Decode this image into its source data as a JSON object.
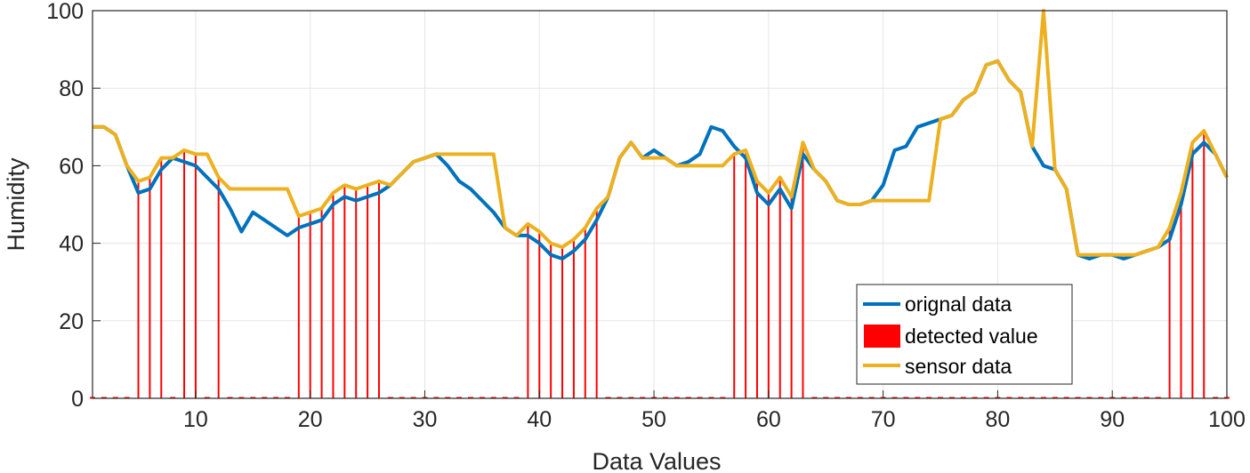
{
  "chart_data": {
    "type": "line",
    "title": "",
    "xlabel": "Data Values",
    "ylabel": "Humidity",
    "xlim": [
      1,
      100
    ],
    "ylim": [
      0,
      100
    ],
    "grid": true,
    "legend_position": "bottom-right",
    "x_ticks": [
      10,
      20,
      30,
      40,
      50,
      60,
      70,
      80,
      90,
      100
    ],
    "y_ticks": [
      0,
      20,
      40,
      60,
      80,
      100
    ],
    "colors": {
      "original": "#0072BD",
      "detected": "#FF0000",
      "sensor": "#EDB120",
      "grid": "#E5E5E5",
      "axis": "#262626"
    },
    "legend": [
      "orignal data",
      "detected value",
      "sensor data"
    ],
    "x": [
      1,
      2,
      3,
      4,
      5,
      6,
      7,
      8,
      9,
      10,
      11,
      12,
      13,
      14,
      15,
      16,
      17,
      18,
      19,
      20,
      21,
      22,
      23,
      24,
      25,
      26,
      27,
      28,
      29,
      30,
      31,
      32,
      33,
      34,
      35,
      36,
      37,
      38,
      39,
      40,
      41,
      42,
      43,
      44,
      45,
      46,
      47,
      48,
      49,
      50,
      51,
      52,
      53,
      54,
      55,
      56,
      57,
      58,
      59,
      60,
      61,
      62,
      63,
      64,
      65,
      66,
      67,
      68,
      69,
      70,
      71,
      72,
      73,
      74,
      75,
      76,
      77,
      78,
      79,
      80,
      81,
      82,
      83,
      84,
      85,
      86,
      87,
      88,
      89,
      90,
      91,
      92,
      93,
      94,
      95,
      96,
      97,
      98,
      99,
      100
    ],
    "series": [
      {
        "name": "orignal data",
        "values": [
          70,
          70,
          68,
          60,
          53,
          54,
          59,
          62,
          61,
          60,
          57,
          54,
          49,
          43,
          48,
          46,
          44,
          42,
          44,
          45,
          46,
          50,
          52,
          51,
          52,
          53,
          55,
          58,
          61,
          62,
          63,
          60,
          56,
          54,
          51,
          48,
          44,
          42,
          42,
          40,
          37,
          36,
          38,
          41,
          46,
          52,
          62,
          66,
          62,
          64,
          62,
          60,
          61,
          63,
          70,
          69,
          65,
          62,
          53,
          50,
          54,
          49,
          63,
          59,
          56,
          51,
          50,
          50,
          51,
          55,
          64,
          65,
          70,
          71,
          72,
          73,
          77,
          79,
          86,
          87,
          82,
          79,
          65,
          60,
          59,
          54,
          37,
          36,
          37,
          37,
          36,
          37,
          38,
          39,
          41,
          50,
          63,
          66,
          63,
          57
        ]
      },
      {
        "name": "sensor data",
        "values": [
          70,
          70,
          68,
          60,
          56,
          57,
          62,
          62,
          64,
          63,
          63,
          57,
          54,
          54,
          54,
          54,
          54,
          54,
          47,
          48,
          49,
          53,
          55,
          54,
          55,
          56,
          55,
          58,
          61,
          62,
          63,
          63,
          63,
          63,
          63,
          63,
          44,
          42,
          45,
          43,
          40,
          39,
          41,
          44,
          49,
          52,
          62,
          66,
          62,
          62,
          62,
          60,
          60,
          60,
          60,
          60,
          63,
          64,
          56,
          53,
          57,
          52,
          66,
          59,
          56,
          51,
          50,
          50,
          51,
          51,
          51,
          51,
          51,
          51,
          72,
          73,
          77,
          79,
          86,
          87,
          82,
          79,
          65,
          100,
          59,
          54,
          37,
          37,
          37,
          37,
          37,
          37,
          38,
          39,
          44,
          53,
          66,
          69,
          63,
          57
        ]
      }
    ],
    "detected_value": [
      0,
      0,
      0,
      0,
      56,
      57,
      62,
      0,
      64,
      63,
      0,
      57,
      0,
      0,
      0,
      0,
      0,
      0,
      47,
      48,
      49,
      53,
      55,
      54,
      55,
      56,
      0,
      0,
      0,
      0,
      0,
      0,
      0,
      0,
      0,
      0,
      0,
      0,
      45,
      43,
      40,
      39,
      41,
      44,
      49,
      0,
      0,
      0,
      0,
      0,
      0,
      0,
      0,
      0,
      0,
      0,
      63,
      64,
      56,
      53,
      57,
      52,
      66,
      0,
      0,
      0,
      0,
      0,
      0,
      0,
      0,
      0,
      0,
      0,
      0,
      0,
      0,
      0,
      0,
      0,
      0,
      0,
      0,
      0,
      0,
      0,
      0,
      0,
      0,
      0,
      0,
      0,
      0,
      0,
      44,
      53,
      66,
      69,
      0,
      0
    ]
  }
}
